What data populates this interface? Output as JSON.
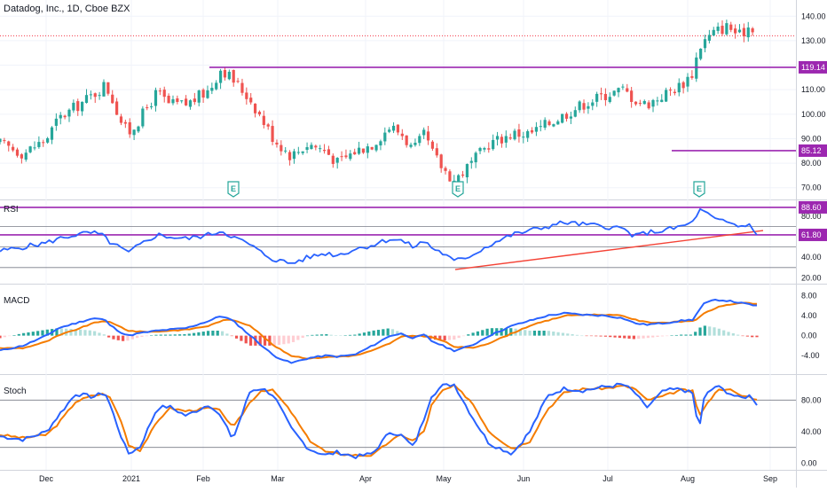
{
  "header": {
    "title": "Datadog, Inc., 1D, Cboe BZX"
  },
  "panes": {
    "rsi_label": "RSI",
    "macd_label": "MACD",
    "stoch_label": "Stoch"
  },
  "colors": {
    "up": "#26a69a",
    "down": "#ef5350",
    "purple": "#9c27b0",
    "blue": "#2962ff",
    "orange": "#f57c00",
    "trend": "#f44336",
    "grid": "#f0f3fa",
    "text": "#131722",
    "dotted_price_line": "#f23645"
  },
  "chart_data": [
    {
      "type": "candlestick",
      "title": "Datadog, Inc., 1D, Cboe BZX",
      "x_tick_labels": [
        "Dec",
        "2021",
        "Feb",
        "Mar",
        "Apr",
        "May",
        "Jun",
        "Jul",
        "Aug",
        "Sep"
      ],
      "y_tick_labels": [
        "70.00",
        "80.00",
        "90.00",
        "100.00",
        "110.00",
        "120.00",
        "130.00",
        "140.00"
      ],
      "ylim": [
        67,
        143
      ],
      "horizontal_levels": [
        {
          "value": 119.14,
          "label": "119.14",
          "start_month": "2021-02-01"
        },
        {
          "value": 85.12,
          "label": "85.12",
          "start_month": "2021-08-01"
        }
      ],
      "earnings_markers": [
        "2021-02-11",
        "2021-05-06",
        "2021-08-05"
      ],
      "earnings_marker_label": "E",
      "price_path": [
        [
          -10,
          88
        ],
        [
          -6,
          84
        ],
        [
          -2,
          90
        ],
        [
          0,
          98
        ],
        [
          3,
          103
        ],
        [
          6,
          108
        ],
        [
          8,
          112
        ],
        [
          9,
          108
        ],
        [
          11,
          96
        ],
        [
          12,
          92
        ],
        [
          14,
          98
        ],
        [
          17,
          109
        ],
        [
          19,
          104
        ],
        [
          22,
          104
        ],
        [
          26,
          110
        ],
        [
          28,
          119
        ],
        [
          30,
          114
        ],
        [
          33,
          106
        ],
        [
          35,
          98
        ],
        [
          37,
          90
        ],
        [
          40,
          83
        ],
        [
          43,
          88
        ],
        [
          46,
          85
        ],
        [
          48,
          80
        ],
        [
          51,
          85
        ],
        [
          54,
          88
        ],
        [
          57,
          95
        ],
        [
          59,
          92
        ],
        [
          61,
          85
        ],
        [
          63,
          92
        ],
        [
          64,
          85
        ],
        [
          66,
          78
        ],
        [
          68,
          73
        ],
        [
          71,
          80
        ],
        [
          74,
          88
        ],
        [
          78,
          92
        ],
        [
          81,
          92
        ],
        [
          84,
          96
        ],
        [
          87,
          100
        ],
        [
          90,
          104
        ],
        [
          94,
          108
        ],
        [
          97,
          110
        ],
        [
          99,
          106
        ],
        [
          101,
          104
        ],
        [
          104,
          108
        ],
        [
          107,
          112
        ],
        [
          109,
          117
        ],
        [
          110,
          127
        ],
        [
          111,
          130
        ],
        [
          113,
          134
        ],
        [
          115,
          136
        ],
        [
          117,
          132
        ],
        [
          119,
          137
        ],
        [
          120,
          132
        ]
      ]
    },
    {
      "type": "line",
      "title": "RSI",
      "y_tick_labels": [
        "20.00",
        "40.00",
        "60.00",
        "80.00"
      ],
      "ylim": [
        16,
        92
      ],
      "horizontal_levels": [
        {
          "value": 88.6,
          "label": "88.60"
        },
        {
          "value": 61.8,
          "label": "61.80"
        }
      ],
      "reference_lines": [
        70,
        50,
        30
      ],
      "trendline": {
        "start": [
          "2021-05-07",
          28
        ],
        "end": [
          "2021-08-30",
          66
        ]
      },
      "series_path": [
        [
          -10,
          46
        ],
        [
          -6,
          50
        ],
        [
          -2,
          54
        ],
        [
          0,
          58
        ],
        [
          3,
          62
        ],
        [
          6,
          64
        ],
        [
          8,
          60
        ],
        [
          9,
          54
        ],
        [
          11,
          48
        ],
        [
          12,
          44
        ],
        [
          14,
          52
        ],
        [
          17,
          62
        ],
        [
          19,
          60
        ],
        [
          22,
          58
        ],
        [
          26,
          62
        ],
        [
          28,
          66
        ],
        [
          30,
          60
        ],
        [
          33,
          52
        ],
        [
          35,
          44
        ],
        [
          37,
          38
        ],
        [
          40,
          34
        ],
        [
          43,
          40
        ],
        [
          46,
          44
        ],
        [
          48,
          42
        ],
        [
          51,
          48
        ],
        [
          54,
          52
        ],
        [
          57,
          58
        ],
        [
          59,
          56
        ],
        [
          61,
          50
        ],
        [
          63,
          56
        ],
        [
          64,
          50
        ],
        [
          66,
          44
        ],
        [
          68,
          36
        ],
        [
          71,
          42
        ],
        [
          74,
          52
        ],
        [
          78,
          62
        ],
        [
          81,
          66
        ],
        [
          84,
          70
        ],
        [
          87,
          74
        ],
        [
          90,
          72
        ],
        [
          94,
          70
        ],
        [
          97,
          68
        ],
        [
          99,
          60
        ],
        [
          101,
          64
        ],
        [
          104,
          66
        ],
        [
          107,
          70
        ],
        [
          109,
          74
        ],
        [
          110,
          86
        ],
        [
          111,
          84
        ],
        [
          113,
          76
        ],
        [
          115,
          74
        ],
        [
          117,
          70
        ],
        [
          119,
          72
        ],
        [
          120,
          62
        ]
      ]
    },
    {
      "type": "line",
      "title": "MACD",
      "y_tick_labels": [
        "-4.00",
        "0.00",
        "4.00",
        "8.00"
      ],
      "ylim": [
        -7,
        9
      ],
      "series_names": [
        "MACD",
        "Signal",
        "Histogram"
      ],
      "macd_path": [
        [
          -10,
          -3
        ],
        [
          -6,
          -2
        ],
        [
          -2,
          0
        ],
        [
          0,
          1.5
        ],
        [
          3,
          2.5
        ],
        [
          6,
          3.5
        ],
        [
          8,
          3.2
        ],
        [
          9,
          2
        ],
        [
          11,
          0.5
        ],
        [
          12,
          0
        ],
        [
          14,
          0.5
        ],
        [
          17,
          1
        ],
        [
          19,
          1.2
        ],
        [
          22,
          1.5
        ],
        [
          26,
          3
        ],
        [
          28,
          4
        ],
        [
          30,
          3
        ],
        [
          33,
          0
        ],
        [
          35,
          -2
        ],
        [
          37,
          -4
        ],
        [
          40,
          -5.5
        ],
        [
          43,
          -4.5
        ],
        [
          46,
          -4
        ],
        [
          48,
          -4.2
        ],
        [
          51,
          -3.8
        ],
        [
          54,
          -2
        ],
        [
          57,
          0
        ],
        [
          59,
          0.4
        ],
        [
          61,
          -0.5
        ],
        [
          63,
          0.2
        ],
        [
          64,
          -1
        ],
        [
          66,
          -2
        ],
        [
          68,
          -3
        ],
        [
          71,
          -2
        ],
        [
          74,
          0
        ],
        [
          78,
          2
        ],
        [
          81,
          3
        ],
        [
          84,
          4
        ],
        [
          87,
          4.5
        ],
        [
          90,
          4.2
        ],
        [
          94,
          4
        ],
        [
          97,
          3.5
        ],
        [
          99,
          2.5
        ],
        [
          101,
          2.2
        ],
        [
          104,
          2.5
        ],
        [
          107,
          3
        ],
        [
          109,
          3.2
        ],
        [
          110,
          5
        ],
        [
          111,
          6.5
        ],
        [
          113,
          7.2
        ],
        [
          115,
          7
        ],
        [
          117,
          6.6
        ],
        [
          119,
          6.2
        ],
        [
          120,
          6
        ]
      ],
      "signal_path": [
        [
          -10,
          -2.5
        ],
        [
          -6,
          -2.5
        ],
        [
          -2,
          -1.2
        ],
        [
          0,
          0
        ],
        [
          3,
          1.2
        ],
        [
          6,
          2.5
        ],
        [
          8,
          3
        ],
        [
          9,
          2.6
        ],
        [
          11,
          1.6
        ],
        [
          12,
          1
        ],
        [
          14,
          0.8
        ],
        [
          17,
          0.8
        ],
        [
          19,
          1
        ],
        [
          22,
          1.2
        ],
        [
          26,
          2
        ],
        [
          28,
          3
        ],
        [
          30,
          3.2
        ],
        [
          33,
          2
        ],
        [
          35,
          0
        ],
        [
          37,
          -2
        ],
        [
          40,
          -4
        ],
        [
          43,
          -4.6
        ],
        [
          46,
          -4.3
        ],
        [
          48,
          -4.2
        ],
        [
          51,
          -4
        ],
        [
          54,
          -3
        ],
        [
          57,
          -1.5
        ],
        [
          59,
          -0.2
        ],
        [
          61,
          0
        ],
        [
          63,
          -0.1
        ],
        [
          64,
          -0.3
        ],
        [
          66,
          -1
        ],
        [
          68,
          -2.2
        ],
        [
          71,
          -2.5
        ],
        [
          74,
          -1.5
        ],
        [
          78,
          0.5
        ],
        [
          81,
          2
        ],
        [
          84,
          3
        ],
        [
          87,
          4
        ],
        [
          90,
          4.2
        ],
        [
          94,
          4.2
        ],
        [
          97,
          4
        ],
        [
          99,
          3.2
        ],
        [
          101,
          2.7
        ],
        [
          104,
          2.6
        ],
        [
          107,
          2.8
        ],
        [
          109,
          3
        ],
        [
          110,
          3.5
        ],
        [
          111,
          4.5
        ],
        [
          113,
          5.6
        ],
        [
          115,
          6.2
        ],
        [
          117,
          6.5
        ],
        [
          119,
          6.5
        ],
        [
          120,
          6.3
        ]
      ]
    },
    {
      "type": "line",
      "title": "Stoch",
      "y_tick_labels": [
        "0.00",
        "40.00",
        "80.00"
      ],
      "ylim": [
        -4,
        104
      ],
      "reference_lines": [
        80,
        20
      ],
      "k_path": [
        [
          -10,
          34
        ],
        [
          -6,
          30
        ],
        [
          -2,
          40
        ],
        [
          0,
          60
        ],
        [
          3,
          88
        ],
        [
          6,
          84
        ],
        [
          8,
          90
        ],
        [
          9,
          72
        ],
        [
          11,
          30
        ],
        [
          12,
          12
        ],
        [
          14,
          20
        ],
        [
          17,
          70
        ],
        [
          19,
          72
        ],
        [
          22,
          60
        ],
        [
          26,
          75
        ],
        [
          28,
          58
        ],
        [
          30,
          30
        ],
        [
          33,
          92
        ],
        [
          35,
          95
        ],
        [
          37,
          86
        ],
        [
          40,
          44
        ],
        [
          43,
          18
        ],
        [
          46,
          10
        ],
        [
          48,
          14
        ],
        [
          51,
          8
        ],
        [
          54,
          12
        ],
        [
          57,
          40
        ],
        [
          59,
          35
        ],
        [
          61,
          20
        ],
        [
          63,
          60
        ],
        [
          64,
          85
        ],
        [
          66,
          98
        ],
        [
          68,
          100
        ],
        [
          71,
          60
        ],
        [
          74,
          25
        ],
        [
          78,
          12
        ],
        [
          81,
          40
        ],
        [
          84,
          85
        ],
        [
          87,
          95
        ],
        [
          90,
          92
        ],
        [
          94,
          97
        ],
        [
          97,
          100
        ],
        [
          99,
          90
        ],
        [
          101,
          70
        ],
        [
          104,
          92
        ],
        [
          107,
          94
        ],
        [
          109,
          88
        ],
        [
          110,
          40
        ],
        [
          111,
          85
        ],
        [
          113,
          98
        ],
        [
          115,
          90
        ],
        [
          117,
          82
        ],
        [
          119,
          86
        ],
        [
          120,
          75
        ]
      ],
      "d_path": [
        [
          -10,
          36
        ],
        [
          -6,
          32
        ],
        [
          -2,
          36
        ],
        [
          0,
          50
        ],
        [
          3,
          78
        ],
        [
          6,
          86
        ],
        [
          8,
          88
        ],
        [
          9,
          82
        ],
        [
          11,
          50
        ],
        [
          12,
          24
        ],
        [
          14,
          16
        ],
        [
          17,
          52
        ],
        [
          19,
          70
        ],
        [
          22,
          66
        ],
        [
          26,
          70
        ],
        [
          28,
          66
        ],
        [
          30,
          44
        ],
        [
          33,
          78
        ],
        [
          35,
          93
        ],
        [
          37,
          92
        ],
        [
          40,
          65
        ],
        [
          43,
          30
        ],
        [
          46,
          14
        ],
        [
          48,
          12
        ],
        [
          51,
          10
        ],
        [
          54,
          10
        ],
        [
          57,
          28
        ],
        [
          59,
          36
        ],
        [
          61,
          28
        ],
        [
          63,
          42
        ],
        [
          64,
          72
        ],
        [
          66,
          92
        ],
        [
          68,
          98
        ],
        [
          71,
          78
        ],
        [
          74,
          40
        ],
        [
          78,
          18
        ],
        [
          81,
          28
        ],
        [
          84,
          68
        ],
        [
          87,
          90
        ],
        [
          90,
          94
        ],
        [
          94,
          95
        ],
        [
          97,
          98
        ],
        [
          99,
          95
        ],
        [
          101,
          80
        ],
        [
          104,
          85
        ],
        [
          107,
          93
        ],
        [
          109,
          91
        ],
        [
          110,
          60
        ],
        [
          111,
          70
        ],
        [
          113,
          92
        ],
        [
          115,
          95
        ],
        [
          117,
          86
        ],
        [
          119,
          84
        ],
        [
          120,
          80
        ]
      ]
    }
  ]
}
